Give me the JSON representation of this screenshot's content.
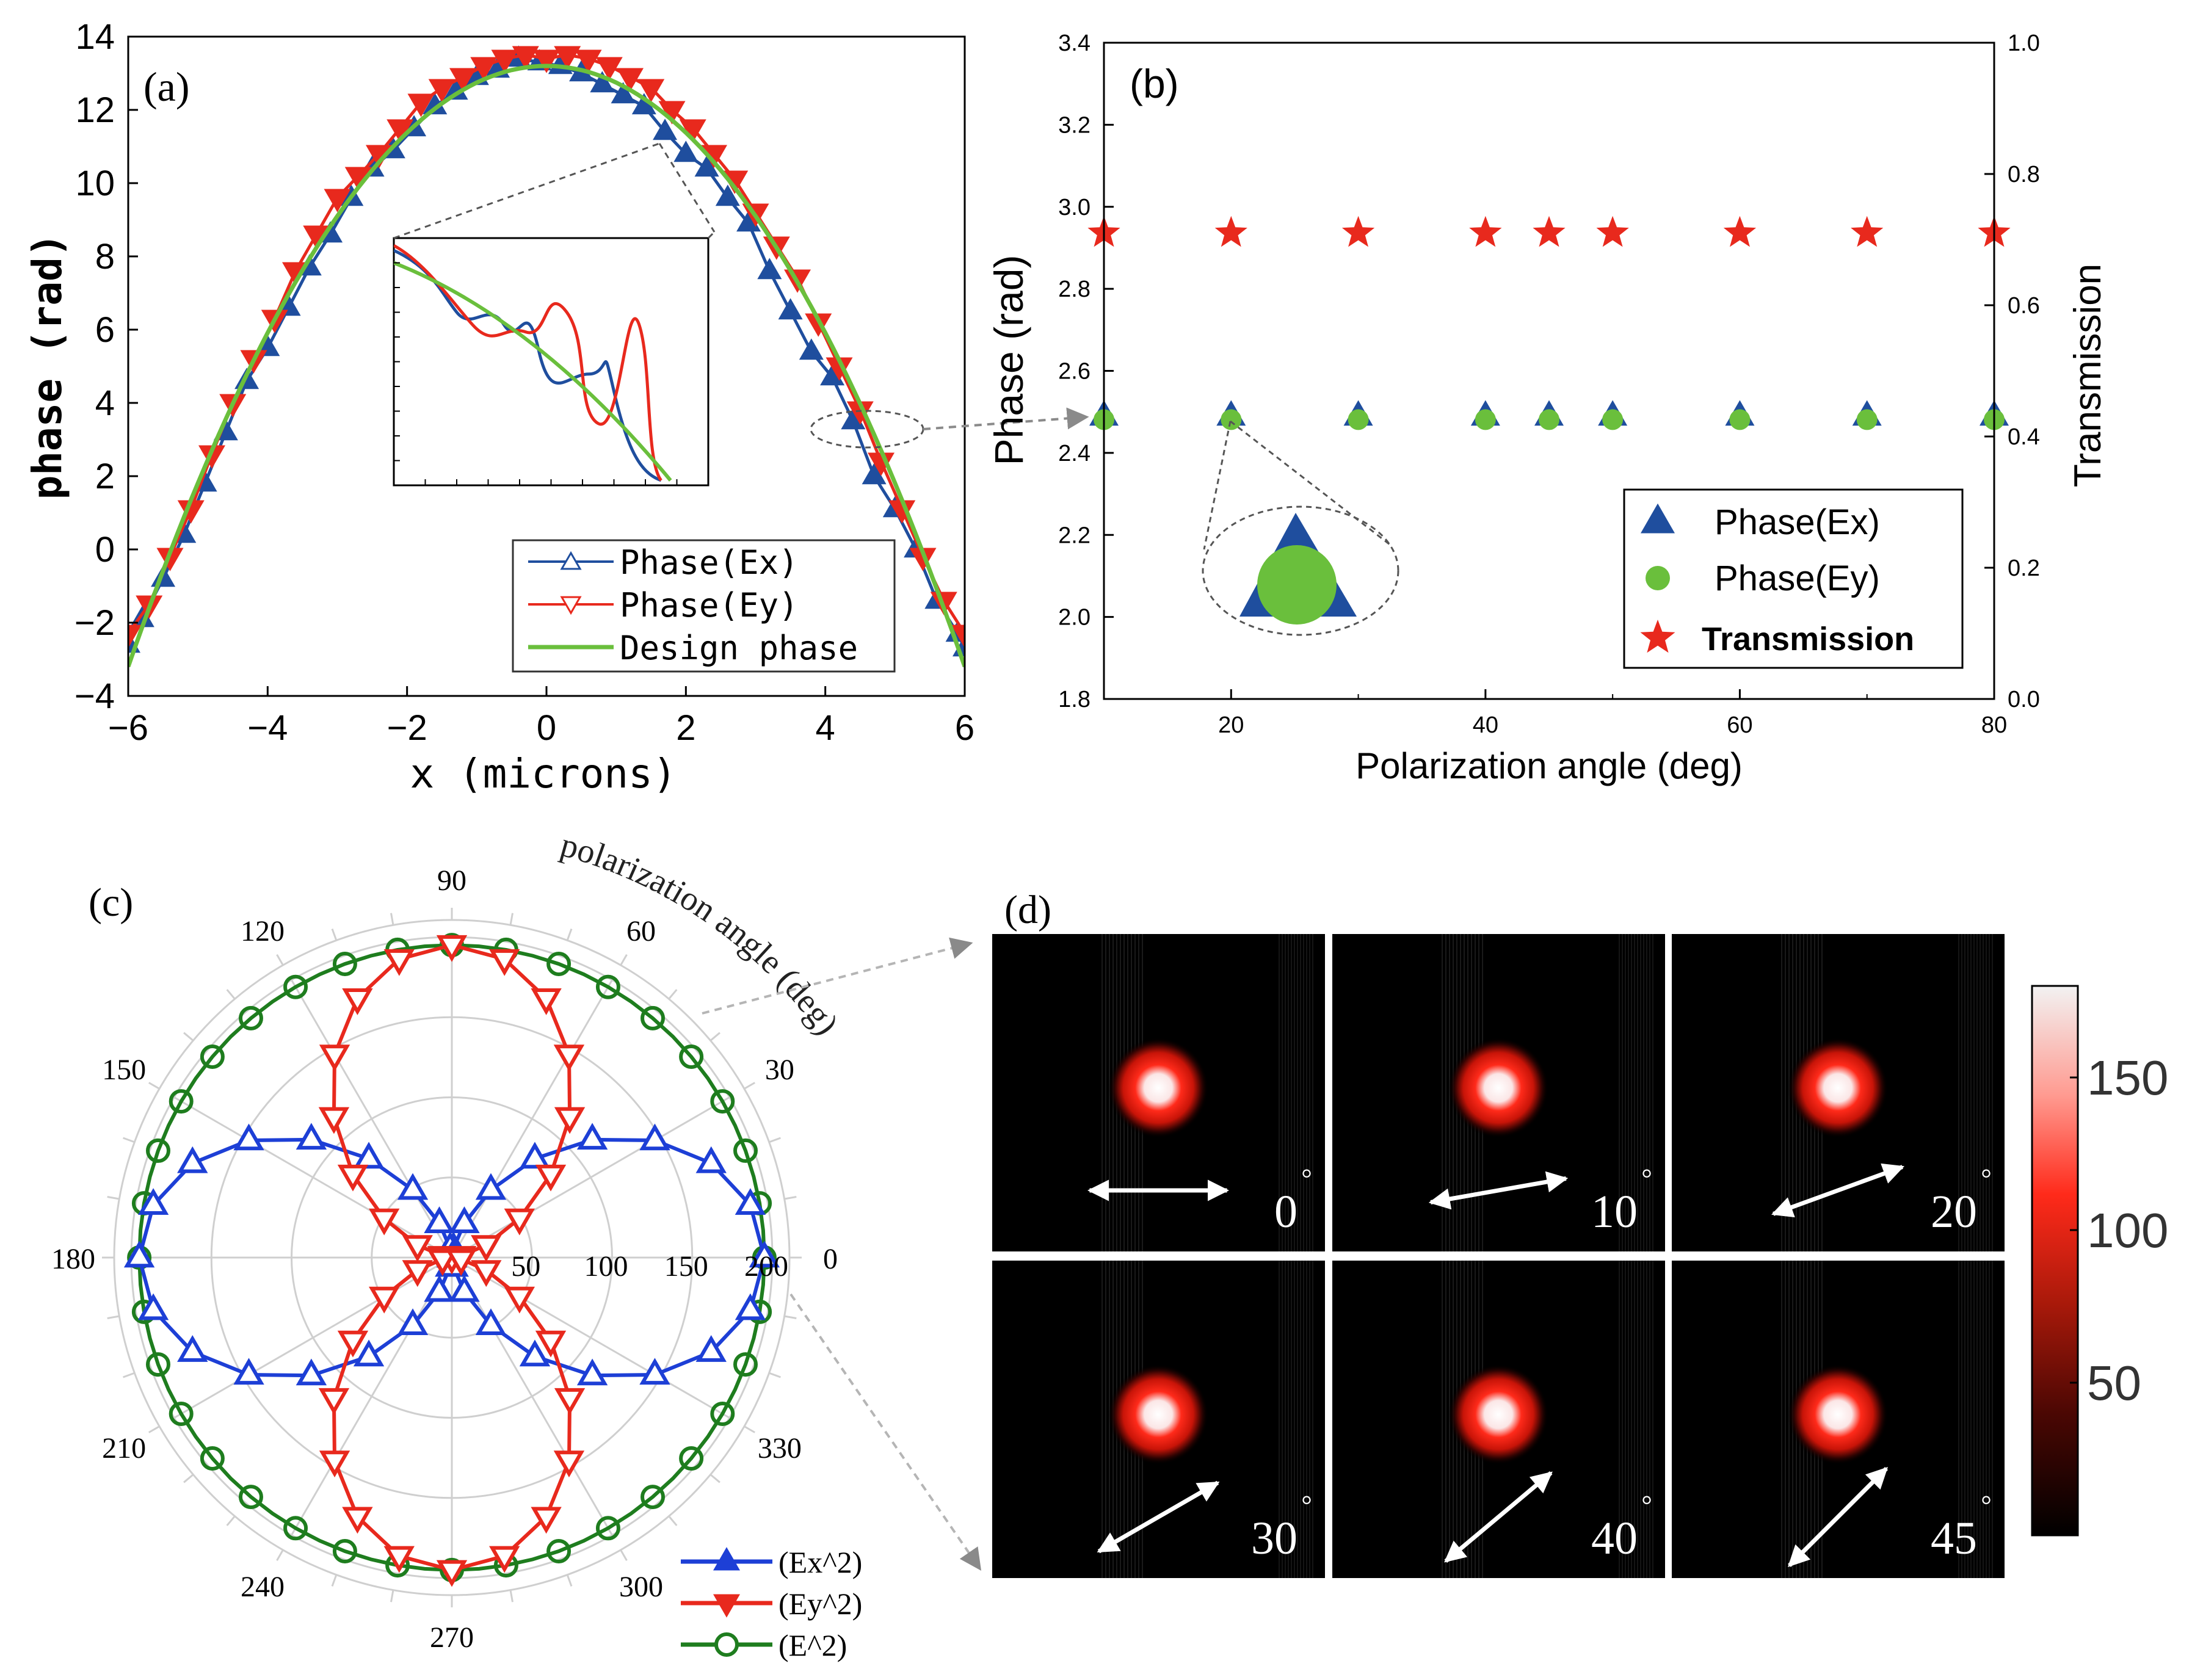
{
  "colors": {
    "ex": "#1f4e9e",
    "ey": "#e8291d",
    "design": "#6abf3c",
    "total": "#1e7d1e",
    "star": "#e8291d",
    "grid": "#cfcfcf",
    "dashed": "#666666"
  },
  "chart_data": [
    {
      "id": "a",
      "type": "line",
      "panel_label": "(a)",
      "xlabel": "x (microns)",
      "ylabel": "phase (rad)",
      "xlim": [
        -6,
        6
      ],
      "ylim": [
        -4,
        14
      ],
      "xticks": [
        -6,
        -4,
        -2,
        0,
        2,
        4,
        6
      ],
      "yticks": [
        -4,
        -2,
        0,
        2,
        4,
        6,
        8,
        10,
        12,
        14
      ],
      "xtick_labels": [
        "−6",
        "−4",
        "−2",
        "0",
        "2",
        "4",
        "6"
      ],
      "ytick_labels": [
        "−4",
        "−2",
        "0",
        "2",
        "4",
        "6",
        "8",
        "10",
        "12",
        "14"
      ],
      "design_phase": {
        "peak": 13.2,
        "edge": -3.2,
        "edge_x": 6
      },
      "series": [
        {
          "name": "Phase(Ex)",
          "marker": "triangle-up",
          "x": [
            -6,
            -5.8,
            -5.5,
            -5.2,
            -4.9,
            -4.6,
            -4.3,
            -4.0,
            -3.7,
            -3.4,
            -3.1,
            -2.8,
            -2.5,
            -2.2,
            -1.9,
            -1.6,
            -1.3,
            -1.0,
            -0.7,
            -0.4,
            -0.1,
            0.2,
            0.5,
            0.8,
            1.1,
            1.4,
            1.7,
            2.0,
            2.3,
            2.6,
            2.9,
            3.2,
            3.5,
            3.8,
            4.1,
            4.4,
            4.7,
            5.0,
            5.3,
            5.6,
            5.9,
            6.0
          ],
          "y": [
            -2.6,
            -1.9,
            -0.8,
            0.4,
            1.8,
            3.2,
            4.6,
            5.5,
            6.6,
            7.7,
            8.6,
            9.6,
            10.4,
            10.9,
            11.5,
            12.1,
            12.5,
            12.9,
            13.1,
            13.4,
            13.3,
            13.2,
            13.0,
            12.7,
            12.4,
            12.1,
            11.4,
            10.8,
            10.4,
            9.6,
            8.9,
            7.6,
            6.5,
            5.4,
            4.7,
            3.5,
            2.0,
            1.1,
            0.0,
            -1.4,
            -2.3,
            -2.7
          ]
        },
        {
          "name": "Phase(Ey)",
          "marker": "triangle-down",
          "x": [
            -6,
            -5.7,
            -5.4,
            -5.1,
            -4.8,
            -4.5,
            -4.2,
            -3.9,
            -3.6,
            -3.3,
            -3.0,
            -2.7,
            -2.4,
            -2.1,
            -1.8,
            -1.5,
            -1.2,
            -0.9,
            -0.6,
            -0.3,
            0.0,
            0.3,
            0.6,
            0.9,
            1.2,
            1.5,
            1.8,
            2.1,
            2.4,
            2.7,
            3.0,
            3.3,
            3.6,
            3.9,
            4.2,
            4.5,
            4.8,
            5.1,
            5.4,
            5.7,
            6.0
          ],
          "y": [
            -2.3,
            -1.5,
            -0.2,
            1.1,
            2.6,
            4.0,
            5.2,
            6.3,
            7.6,
            8.6,
            9.6,
            10.2,
            10.8,
            11.5,
            12.2,
            12.6,
            12.9,
            13.2,
            13.4,
            13.5,
            13.4,
            13.5,
            13.4,
            13.2,
            12.9,
            12.6,
            12.0,
            11.5,
            10.8,
            10.1,
            9.2,
            8.3,
            7.4,
            6.2,
            5.0,
            3.8,
            2.4,
            1.1,
            -0.2,
            -1.4,
            -2.3
          ]
        },
        {
          "name": "Design phase",
          "marker": "none"
        }
      ],
      "inset": {
        "zoom_center_x": 4.7,
        "zoom_center_y": 3.5
      }
    },
    {
      "id": "b",
      "type": "scatter",
      "panel_label": "(b)",
      "xlabel": "Polarization angle (deg)",
      "ylabel": "Phase (rad)",
      "y2label": "Transmission",
      "xlim": [
        10,
        80
      ],
      "ylim": [
        1.8,
        3.4
      ],
      "y2lim": [
        0.0,
        1.0
      ],
      "xticks": [
        20,
        40,
        60,
        80
      ],
      "yticks": [
        1.8,
        2.0,
        2.2,
        2.4,
        2.6,
        2.8,
        3.0,
        3.2,
        3.4
      ],
      "y2ticks": [
        0.0,
        0.2,
        0.4,
        0.6,
        0.8,
        1.0
      ],
      "xtick_labels": [
        "20",
        "40",
        "60",
        "80"
      ],
      "ytick_labels": [
        "1.8",
        "2.0",
        "2.2",
        "2.4",
        "2.6",
        "2.8",
        "3.0",
        "3.2",
        "3.4"
      ],
      "y2tick_labels": [
        "0.0",
        "0.2",
        "0.4",
        "0.6",
        "0.8",
        "1.0"
      ],
      "x": [
        10,
        20,
        30,
        40,
        45,
        50,
        60,
        70,
        80
      ],
      "series": [
        {
          "name": "Phase(Ex)",
          "marker": "triangle",
          "values": [
            2.49,
            2.49,
            2.49,
            2.49,
            2.49,
            2.49,
            2.49,
            2.49,
            2.49
          ]
        },
        {
          "name": "Phase(Ey)",
          "marker": "circle",
          "values": [
            2.49,
            2.49,
            2.49,
            2.49,
            2.49,
            2.49,
            2.49,
            2.49,
            2.49
          ]
        },
        {
          "name": "Transmission",
          "marker": "star",
          "axis": "right",
          "values": [
            0.71,
            0.71,
            0.71,
            0.71,
            0.71,
            0.71,
            0.71,
            0.71,
            0.71
          ]
        }
      ]
    },
    {
      "id": "c",
      "type": "polar",
      "panel_label": "(c)",
      "annotation": "polarization angle (deg)",
      "r_max": 200,
      "r_ticks": [
        50,
        100,
        150,
        200
      ],
      "r_tick_labels": [
        "50",
        "100",
        "150",
        "200"
      ],
      "angle_ticks": [
        0,
        30,
        60,
        90,
        120,
        150,
        180,
        210,
        240,
        270,
        300,
        330
      ],
      "angle_tick_labels": [
        "0",
        "30",
        "60",
        "90",
        "120",
        "150",
        "180",
        "210",
        "240",
        "270",
        "300",
        "330"
      ],
      "series": [
        {
          "name": "(Ex^2)",
          "marker": "triangle-up",
          "formula": "Imax*cos^2(theta)",
          "Imax": 195
        },
        {
          "name": "(Ey^2)",
          "marker": "triangle-down",
          "formula": "Imax*sin^2(theta)",
          "Imax": 195
        },
        {
          "name": "(E^2)",
          "marker": "circle",
          "formula": "Imax",
          "Imax": 195
        }
      ]
    },
    {
      "id": "d",
      "type": "heatmap",
      "panel_label": "(d)",
      "angles": [
        0,
        10,
        20,
        30,
        40,
        45
      ],
      "angle_labels": [
        "0",
        "10",
        "20",
        "30",
        "40",
        "45"
      ],
      "colorbar_ticks": [
        50,
        100,
        150
      ],
      "colorbar_labels": [
        "50",
        "100",
        "150"
      ],
      "colorbar_range": [
        0,
        180
      ]
    }
  ]
}
